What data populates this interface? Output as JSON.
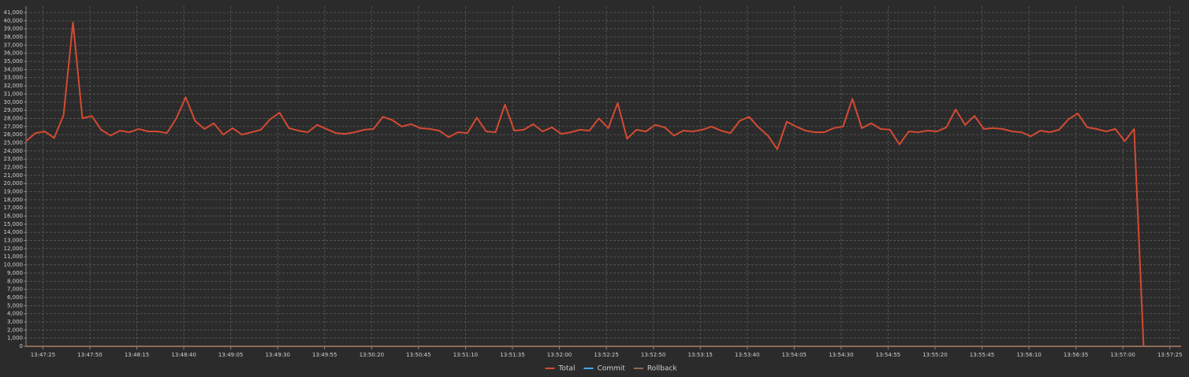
{
  "chart_data": {
    "type": "line",
    "grid": true,
    "legend": "bottom",
    "x": [
      "13:47:16",
      "13:47:21",
      "13:47:26",
      "13:47:31",
      "13:47:36",
      "13:47:41",
      "13:47:46",
      "13:47:51",
      "13:47:56",
      "13:48:01",
      "13:48:06",
      "13:48:11",
      "13:48:16",
      "13:48:21",
      "13:48:26",
      "13:48:31",
      "13:48:36",
      "13:48:41",
      "13:48:46",
      "13:48:51",
      "13:48:56",
      "13:49:01",
      "13:49:06",
      "13:49:11",
      "13:49:16",
      "13:49:21",
      "13:49:26",
      "13:49:31",
      "13:49:36",
      "13:49:41",
      "13:49:46",
      "13:49:51",
      "13:49:56",
      "13:50:01",
      "13:50:06",
      "13:50:11",
      "13:50:16",
      "13:50:21",
      "13:50:26",
      "13:50:31",
      "13:50:36",
      "13:50:41",
      "13:50:46",
      "13:50:51",
      "13:50:56",
      "13:51:01",
      "13:51:06",
      "13:51:11",
      "13:51:16",
      "13:51:21",
      "13:51:26",
      "13:51:31",
      "13:51:36",
      "13:51:41",
      "13:51:46",
      "13:51:51",
      "13:51:56",
      "13:52:01",
      "13:52:06",
      "13:52:11",
      "13:52:16",
      "13:52:21",
      "13:52:26",
      "13:52:31",
      "13:52:36",
      "13:52:41",
      "13:52:46",
      "13:52:51",
      "13:52:56",
      "13:53:01",
      "13:53:06",
      "13:53:11",
      "13:53:16",
      "13:53:21",
      "13:53:26",
      "13:53:31",
      "13:53:36",
      "13:53:41",
      "13:53:46",
      "13:53:51",
      "13:53:56",
      "13:54:01",
      "13:54:06",
      "13:54:11",
      "13:54:16",
      "13:54:21",
      "13:54:26",
      "13:54:31",
      "13:54:36",
      "13:54:41",
      "13:54:46",
      "13:54:51",
      "13:54:56",
      "13:55:01",
      "13:55:06",
      "13:55:11",
      "13:55:16",
      "13:55:21",
      "13:55:26",
      "13:55:31",
      "13:55:36",
      "13:55:41",
      "13:55:46",
      "13:55:51",
      "13:55:56",
      "13:56:01",
      "13:56:06",
      "13:56:11",
      "13:56:16",
      "13:56:21",
      "13:56:26",
      "13:56:31",
      "13:56:36",
      "13:56:41",
      "13:56:46",
      "13:56:51",
      "13:56:56",
      "13:57:01",
      "13:57:06",
      "13:57:11",
      "13:57:16",
      "13:57:21",
      "13:57:26",
      "13:57:31"
    ],
    "series": [
      {
        "name": "Total",
        "color": "#d44a32",
        "values": [
          25200,
          26200,
          26400,
          25600,
          28400,
          39800,
          28000,
          28300,
          26600,
          25900,
          26500,
          26300,
          26700,
          26400,
          26400,
          26200,
          28000,
          30600,
          27700,
          26700,
          27400,
          26000,
          26800,
          26000,
          26300,
          26600,
          27900,
          28700,
          26800,
          26500,
          26300,
          27200,
          26700,
          26200,
          26100,
          26300,
          26600,
          26700,
          28200,
          27800,
          27000,
          27300,
          26800,
          26700,
          26500,
          25700,
          26300,
          26200,
          28100,
          26400,
          26300,
          29700,
          26500,
          26600,
          27300,
          26400,
          26900,
          26100,
          26300,
          26600,
          26500,
          28000,
          26800,
          29900,
          25500,
          26600,
          26400,
          27200,
          26900,
          25900,
          26500,
          26400,
          26600,
          27000,
          26500,
          26200,
          27700,
          28200,
          26900,
          25900,
          24200,
          27600,
          27000,
          26500,
          26300,
          26300,
          26800,
          27000,
          30400,
          26800,
          27400,
          26700,
          26600,
          24800,
          26400,
          26300,
          26500,
          26400,
          26900,
          29100,
          27200,
          28300,
          26700,
          26800,
          26700,
          26400,
          26300,
          25800,
          26500,
          26300,
          26600,
          27900,
          28600,
          26900,
          26700,
          26400,
          26700,
          25200,
          26700,
          0,
          0,
          0,
          0,
          0
        ]
      },
      {
        "name": "Commit",
        "color": "#3fa9f5",
        "values": [
          0,
          0,
          0,
          0,
          0,
          0,
          0,
          0,
          0,
          0,
          0,
          0,
          0,
          0,
          0,
          0,
          0,
          0,
          0,
          0,
          0,
          0,
          0,
          0,
          0,
          0,
          0,
          0,
          0,
          0,
          0,
          0,
          0,
          0,
          0,
          0,
          0,
          0,
          0,
          0,
          0,
          0,
          0,
          0,
          0,
          0,
          0,
          0,
          0,
          0,
          0,
          0,
          0,
          0,
          0,
          0,
          0,
          0,
          0,
          0,
          0,
          0,
          0,
          0,
          0,
          0,
          0,
          0,
          0,
          0,
          0,
          0,
          0,
          0,
          0,
          0,
          0,
          0,
          0,
          0,
          0,
          0,
          0,
          0,
          0,
          0,
          0,
          0,
          0,
          0,
          0,
          0,
          0,
          0,
          0,
          0,
          0,
          0,
          0,
          0,
          0,
          0,
          0,
          0,
          0,
          0,
          0,
          0,
          0,
          0,
          0,
          0,
          0,
          0,
          0,
          0,
          0,
          0,
          0,
          0,
          0,
          0,
          0,
          0
        ]
      },
      {
        "name": "Rollback",
        "color": "#8f6a58",
        "values": [
          0,
          0,
          0,
          0,
          0,
          0,
          0,
          0,
          0,
          0,
          0,
          0,
          0,
          0,
          0,
          0,
          0,
          0,
          0,
          0,
          0,
          0,
          0,
          0,
          0,
          0,
          0,
          0,
          0,
          0,
          0,
          0,
          0,
          0,
          0,
          0,
          0,
          0,
          0,
          0,
          0,
          0,
          0,
          0,
          0,
          0,
          0,
          0,
          0,
          0,
          0,
          0,
          0,
          0,
          0,
          0,
          0,
          0,
          0,
          0,
          0,
          0,
          0,
          0,
          0,
          0,
          0,
          0,
          0,
          0,
          0,
          0,
          0,
          0,
          0,
          0,
          0,
          0,
          0,
          0,
          0,
          0,
          0,
          0,
          0,
          0,
          0,
          0,
          0,
          0,
          0,
          0,
          0,
          0,
          0,
          0,
          0,
          0,
          0,
          0,
          0,
          0,
          0,
          0,
          0,
          0,
          0,
          0,
          0,
          0,
          0,
          0,
          0,
          0,
          0,
          0,
          0,
          0,
          0,
          0,
          0,
          0,
          0,
          0
        ]
      }
    ],
    "xlim": [
      "13:47:16",
      "13:57:31"
    ],
    "xticks": [
      "13:47:25",
      "13:47:50",
      "13:48:15",
      "13:48:40",
      "13:49:05",
      "13:49:30",
      "13:49:55",
      "13:50:20",
      "13:50:45",
      "13:51:10",
      "13:51:35",
      "13:52:00",
      "13:52:25",
      "13:52:50",
      "13:53:15",
      "13:53:40",
      "13:54:05",
      "13:54:30",
      "13:54:55",
      "13:55:20",
      "13:55:45",
      "13:56:10",
      "13:56:35",
      "13:57:00",
      "13:57:25"
    ],
    "ylim": [
      0,
      41000
    ],
    "yticks": [
      0,
      {
        "value": 1000,
        "label": "1,000"
      },
      {
        "value": 2000,
        "label": "2,000"
      },
      {
        "value": 3000,
        "label": "3,000"
      },
      {
        "value": 4000,
        "label": "4,000"
      },
      {
        "value": 5000,
        "label": "5,000"
      },
      {
        "value": 6000,
        "label": "6,000"
      },
      {
        "value": 7000,
        "label": "7,000"
      },
      {
        "value": 8000,
        "label": "8,000"
      },
      {
        "value": 9000,
        "label": "9,000"
      },
      {
        "value": 10000,
        "label": "10,000"
      },
      {
        "value": 11000,
        "label": "11,000"
      },
      {
        "value": 12000,
        "label": "12,000"
      },
      {
        "value": 13000,
        "label": "13,000"
      },
      {
        "value": 14000,
        "label": "14,000"
      },
      {
        "value": 15000,
        "label": "15,000"
      },
      {
        "value": 16000,
        "label": "16,000"
      },
      {
        "value": 17000,
        "label": "17,000"
      },
      {
        "value": 18000,
        "label": "18,000"
      },
      {
        "value": 19000,
        "label": "19,000"
      },
      {
        "value": 20000,
        "label": "20,000"
      },
      {
        "value": 21000,
        "label": "21,000"
      },
      {
        "value": 22000,
        "label": "22,000"
      },
      {
        "value": 23000,
        "label": "23,000"
      },
      {
        "value": 24000,
        "label": "24,000"
      },
      {
        "value": 25000,
        "label": "25,000"
      },
      {
        "value": 26000,
        "label": "26,000"
      },
      {
        "value": 27000,
        "label": "27,000"
      },
      {
        "value": 28000,
        "label": "28,000"
      },
      {
        "value": 29000,
        "label": "29,000"
      },
      {
        "value": 30000,
        "label": "30,000"
      },
      {
        "value": 31000,
        "label": "31,000"
      },
      {
        "value": 32000,
        "label": "32,000"
      },
      {
        "value": 33000,
        "label": "33,000"
      },
      {
        "value": 34000,
        "label": "34,000"
      },
      {
        "value": 35000,
        "label": "35,000"
      },
      {
        "value": 36000,
        "label": "36,000"
      },
      {
        "value": 37000,
        "label": "37,000"
      },
      {
        "value": 38000,
        "label": "38,000"
      },
      {
        "value": 39000,
        "label": "39,000"
      },
      {
        "value": 40000,
        "label": "40,000"
      },
      {
        "value": 41000,
        "label": "41,000"
      }
    ]
  }
}
